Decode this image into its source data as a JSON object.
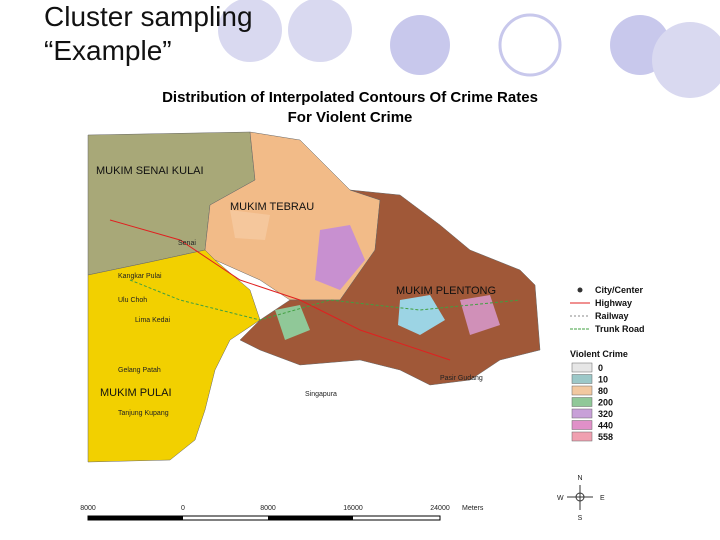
{
  "slide": {
    "title": "Cluster sampling",
    "subtitle": "“Example”"
  },
  "map": {
    "title": [
      "Distribution of Interpolated Contours Of Crime Rates",
      "For Violent Crime"
    ],
    "regions": [
      "MUKIM SENAI KULAI",
      "MUKIM TEBRAU",
      "MUKIM PLENTONG",
      "MUKIM PULAI"
    ],
    "towns": [
      "Senai",
      "Kangkar Pulai",
      "Lima Kedai",
      "Ulu Choh",
      "Gelang Patah",
      "Tanjung Kupang",
      "Singapura",
      "Pasir Gudang"
    ],
    "legend": {
      "features": [
        "City/Center",
        "Highway",
        "Railway",
        "Trunk Road"
      ],
      "crime_title": "Violent Crime",
      "crime_classes": [
        0,
        10,
        80,
        200,
        320,
        440,
        558
      ]
    },
    "scale": {
      "labels": [
        8000,
        0,
        8000,
        16000,
        24000
      ],
      "unit": "Meters"
    },
    "compass": [
      "N",
      "E",
      "S",
      "W"
    ]
  }
}
